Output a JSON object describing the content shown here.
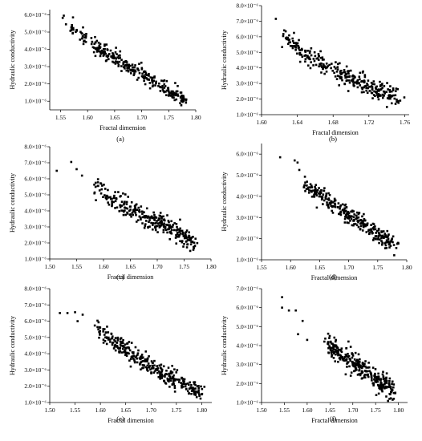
{
  "figure": {
    "xlabel": "Fractal dimension",
    "ylabel": "Hydraulic conductivity"
  },
  "chart_data": [
    {
      "type": "scatter",
      "panel": "(a)",
      "xlabel": "Fractal dimension",
      "ylabel": "Hydraulic conductivity",
      "xlim": [
        1.53,
        1.8
      ],
      "xticks": [
        1.55,
        1.6,
        1.65,
        1.7,
        1.75,
        1.8
      ],
      "ylim": [
        5e-07,
        6.3e-06
      ],
      "yticks": [
        1e-06,
        2e-06,
        3e-06,
        4e-06,
        5e-06,
        6e-06
      ],
      "ytick_labels": [
        "1.0×10⁻⁶",
        "2.0×10⁻⁶",
        "3.0×10⁻⁶",
        "4.0×10⁻⁶",
        "5.0×10⁻⁶",
        "6.0×10⁻⁶"
      ],
      "trend": {
        "x": [
          1.555,
          1.585,
          1.62,
          1.66,
          1.7,
          1.74,
          1.78
        ],
        "y": [
          5.6e-06,
          4.9e-06,
          4.1e-06,
          3.3e-06,
          2.6e-06,
          1.8e-06,
          1.1e-06
        ]
      },
      "n_points": 300,
      "spread": 2.2e-07,
      "seed": 11,
      "outliers": [
        [
          1.556,
          5.95e-06
        ],
        [
          1.573,
          5.85e-06
        ],
        [
          1.56,
          5.45e-06
        ],
        [
          1.782,
          1.05e-06
        ]
      ]
    },
    {
      "type": "scatter",
      "panel": "(b)",
      "xlabel": "Fractal dimension",
      "ylabel": "Hydraulic conductivity",
      "xlim": [
        1.6,
        1.765
      ],
      "xticks": [
        1.6,
        1.64,
        1.68,
        1.72,
        1.76
      ],
      "ylim": [
        1e-06,
        8e-06
      ],
      "yticks": [
        1e-06,
        2e-06,
        3e-06,
        4e-06,
        5e-06,
        6e-06,
        7e-06,
        8e-06
      ],
      "ytick_labels": [
        "1.0×10⁻⁶",
        "2.0×10⁻⁶",
        "3.0×10⁻⁶",
        "4.0×10⁻⁶",
        "5.0×10⁻⁶",
        "6.0×10⁻⁶",
        "7.0×10⁻⁶",
        "8.0×10⁻⁶"
      ],
      "trend": {
        "x": [
          1.625,
          1.65,
          1.68,
          1.71,
          1.74,
          1.755
        ],
        "y": [
          6.1e-06,
          4.8e-06,
          3.9e-06,
          3e-06,
          2.3e-06,
          1.9e-06
        ]
      },
      "n_points": 300,
      "spread": 3e-07,
      "seed": 23,
      "outliers": [
        [
          1.616,
          7.15e-06
        ],
        [
          1.627,
          6.35e-06
        ],
        [
          1.755,
          1.9e-06
        ]
      ]
    },
    {
      "type": "scatter",
      "panel": "(c)",
      "xlabel": "Fractal dimension",
      "ylabel": "Hydraulic conductivity",
      "xlim": [
        1.5,
        1.8
      ],
      "xticks": [
        1.5,
        1.55,
        1.6,
        1.65,
        1.7,
        1.75,
        1.8
      ],
      "ylim": [
        1e-06,
        8e-06
      ],
      "yticks": [
        1e-06,
        2e-06,
        3e-06,
        4e-06,
        5e-06,
        6e-06,
        7e-06,
        8e-06
      ],
      "ytick_labels": [
        "1.0×10⁻⁶",
        "2.0×10⁻⁶",
        "3.0×10⁻⁶",
        "4.0×10⁻⁶",
        "5.0×10⁻⁶",
        "6.0×10⁻⁶",
        "7.0×10⁻⁶",
        "8.0×10⁻⁶"
      ],
      "trend": {
        "x": [
          1.58,
          1.62,
          1.66,
          1.7,
          1.74,
          1.77
        ],
        "y": [
          5.6e-06,
          4.7e-06,
          3.9e-06,
          3.3e-06,
          2.6e-06,
          1.9e-06
        ]
      },
      "n_points": 300,
      "spread": 3e-07,
      "seed": 37,
      "outliers": [
        [
          1.513,
          6.5e-06
        ],
        [
          1.54,
          7.05e-06
        ],
        [
          1.55,
          6.6e-06
        ],
        [
          1.56,
          6.2e-06
        ],
        [
          1.77,
          1.8e-06
        ]
      ]
    },
    {
      "type": "scatter",
      "panel": "(d)",
      "xlabel": "Fractal dimension",
      "ylabel": "Hydraulic conductivity",
      "xlim": [
        1.55,
        1.8
      ],
      "xticks": [
        1.55,
        1.6,
        1.65,
        1.7,
        1.75,
        1.8
      ],
      "ylim": [
        1e-06,
        6.5e-06
      ],
      "yticks": [
        1e-06,
        2e-06,
        3e-06,
        4e-06,
        5e-06,
        6e-06
      ],
      "ytick_labels": [
        "1.0×10⁻⁶",
        "2.0×10⁻⁶",
        "3.0×10⁻⁶",
        "4.0×10⁻⁶",
        "5.0×10⁻⁶",
        "6.0×10⁻⁶"
      ],
      "trend": {
        "x": [
          1.62,
          1.65,
          1.69,
          1.72,
          1.75,
          1.78
        ],
        "y": [
          4.7e-06,
          4e-06,
          3.3e-06,
          2.8e-06,
          2.2e-06,
          1.7e-06
        ]
      },
      "n_points": 300,
      "spread": 2.2e-07,
      "seed": 41,
      "outliers": [
        [
          1.582,
          5.85e-06
        ],
        [
          1.607,
          5.7e-06
        ],
        [
          1.612,
          5.6e-06
        ],
        [
          1.615,
          5.25e-06
        ],
        [
          1.778,
          1.7e-06
        ]
      ]
    },
    {
      "type": "scatter",
      "panel": "(e)",
      "xlabel": "Fractal dimension",
      "ylabel": "Hydraulic conductivity",
      "xlim": [
        1.5,
        1.82
      ],
      "xticks": [
        1.5,
        1.55,
        1.6,
        1.65,
        1.7,
        1.75,
        1.8
      ],
      "ylim": [
        1e-06,
        8e-06
      ],
      "yticks": [
        1e-06,
        2e-06,
        3e-06,
        4e-06,
        5e-06,
        6e-06,
        7e-06,
        8e-06
      ],
      "ytick_labels": [
        "1.0×10⁻⁶",
        "2.0×10⁻⁶",
        "3.0×10⁻⁶",
        "4.0×10⁻⁶",
        "5.0×10⁻⁶",
        "6.0×10⁻⁶",
        "7.0×10⁻⁶",
        "8.0×10⁻⁶"
      ],
      "trend": {
        "x": [
          1.58,
          1.62,
          1.66,
          1.7,
          1.74,
          1.78,
          1.8
        ],
        "y": [
          6e-06,
          4.9e-06,
          4e-06,
          3.2e-06,
          2.5e-06,
          1.8e-06,
          1.5e-06
        ]
      },
      "n_points": 320,
      "spread": 3e-07,
      "seed": 53,
      "outliers": [
        [
          1.52,
          6.5e-06
        ],
        [
          1.535,
          6.5e-06
        ],
        [
          1.55,
          6.55e-06
        ],
        [
          1.565,
          6.4e-06
        ],
        [
          1.555,
          6e-06
        ],
        [
          1.8,
          1.5e-06
        ]
      ]
    },
    {
      "type": "scatter",
      "panel": "(f)",
      "xlabel": "Fractal dimension",
      "ylabel": "Hydraulic conductivity",
      "xlim": [
        1.5,
        1.82
      ],
      "xticks": [
        1.5,
        1.55,
        1.6,
        1.65,
        1.7,
        1.75,
        1.8
      ],
      "ylim": [
        1e-06,
        7e-06
      ],
      "yticks": [
        1e-06,
        2e-06,
        3e-06,
        4e-06,
        5e-06,
        6e-06,
        7e-06
      ],
      "ytick_labels": [
        "1.0×10⁻⁶",
        "2.0×10⁻⁶",
        "3.0×10⁻⁶",
        "4.0×10⁻⁶",
        "5.0×10⁻⁶",
        "6.0×10⁻⁶",
        "7.0×10⁻⁶"
      ],
      "trend": {
        "x": [
          1.64,
          1.67,
          1.7,
          1.73,
          1.76,
          1.79
        ],
        "y": [
          4.2e-06,
          3.6e-06,
          3.1e-06,
          2.6e-06,
          2.1e-06,
          1.5e-06
        ]
      },
      "n_points": 300,
      "spread": 2.8e-07,
      "seed": 67,
      "outliers": [
        [
          1.545,
          6.55e-06
        ],
        [
          1.545,
          6e-06
        ],
        [
          1.56,
          5.85e-06
        ],
        [
          1.575,
          5.85e-06
        ],
        [
          1.59,
          5.3e-06
        ],
        [
          1.58,
          4.6e-06
        ],
        [
          1.6,
          4.3e-06
        ],
        [
          1.79,
          1.5e-06
        ]
      ]
    }
  ]
}
